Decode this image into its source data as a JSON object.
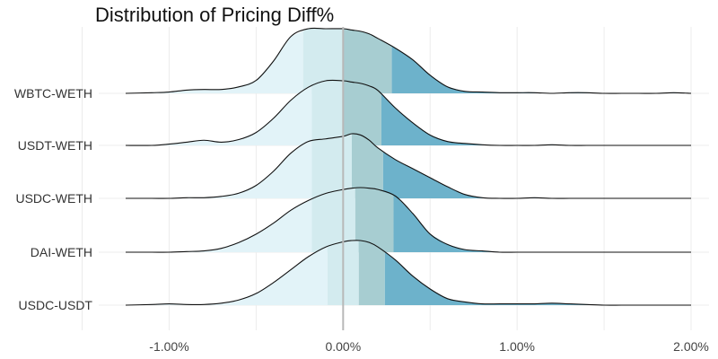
{
  "chart_data": {
    "type": "ridgeline",
    "title": "Distribution of Pricing Diff%",
    "xlabel": "",
    "ylabel": "",
    "xlim": [
      -1.25,
      2.0
    ],
    "x_ticks": [
      -1.0,
      0.0,
      1.0,
      2.0
    ],
    "x_tick_labels": [
      "-1.00%",
      "0.00%",
      "1.00%",
      "2.00%"
    ],
    "grid": true,
    "reference_line_x": 0.0,
    "quantile_colors": [
      "#e2f3f8",
      "#d3ebef",
      "#a7cdd1",
      "#6db2cb"
    ],
    "x": [
      -1.25,
      -1.1,
      -1.0,
      -0.9,
      -0.8,
      -0.7,
      -0.6,
      -0.5,
      -0.4,
      -0.3,
      -0.2,
      -0.1,
      0.0,
      0.05,
      0.1,
      0.15,
      0.2,
      0.3,
      0.4,
      0.5,
      0.6,
      0.7,
      0.8,
      0.9,
      1.0,
      1.1,
      1.2,
      1.3,
      1.4,
      1.5,
      1.6,
      1.7,
      1.8,
      1.9,
      2.0
    ],
    "series": [
      {
        "name": "WBTC-WETH",
        "quantiles": [
          -0.23,
          0.0,
          0.28
        ],
        "density": [
          0.0,
          0.01,
          0.02,
          0.05,
          0.06,
          0.06,
          0.1,
          0.2,
          0.5,
          0.88,
          1.0,
          1.0,
          1.0,
          0.98,
          0.96,
          0.92,
          0.85,
          0.7,
          0.52,
          0.28,
          0.1,
          0.03,
          0.02,
          0.01,
          0.01,
          0.01,
          0.0,
          0.01,
          0.01,
          0.0,
          0.0,
          0.0,
          0.0,
          0.01,
          0.0
        ]
      },
      {
        "name": "USDT-WETH",
        "quantiles": [
          -0.18,
          0.0,
          0.22
        ],
        "density": [
          0.0,
          0.0,
          0.02,
          0.05,
          0.08,
          0.05,
          0.09,
          0.2,
          0.42,
          0.7,
          0.9,
          1.0,
          1.0,
          0.98,
          0.96,
          0.92,
          0.85,
          0.58,
          0.35,
          0.16,
          0.06,
          0.03,
          0.01,
          0.0,
          0.0,
          0.0,
          0.01,
          0.0,
          0.0,
          0.0,
          0.0,
          0.0,
          0.0,
          0.0,
          0.0
        ]
      },
      {
        "name": "USDC-WETH",
        "quantiles": [
          -0.18,
          0.05,
          0.23
        ],
        "density": [
          0.0,
          0.0,
          0.0,
          0.01,
          0.01,
          0.03,
          0.08,
          0.2,
          0.42,
          0.7,
          0.88,
          0.92,
          0.96,
          1.0,
          0.98,
          0.9,
          0.78,
          0.6,
          0.46,
          0.32,
          0.18,
          0.06,
          0.01,
          0.0,
          0.0,
          0.01,
          0.0,
          0.0,
          0.0,
          0.0,
          0.0,
          0.0,
          0.0,
          0.0,
          0.0
        ]
      },
      {
        "name": "DAI-WETH",
        "quantiles": [
          -0.18,
          0.07,
          0.29
        ],
        "density": [
          0.0,
          0.0,
          0.0,
          0.01,
          0.02,
          0.06,
          0.15,
          0.28,
          0.45,
          0.65,
          0.8,
          0.91,
          0.97,
          0.99,
          1.0,
          0.99,
          0.97,
          0.87,
          0.6,
          0.28,
          0.12,
          0.04,
          0.02,
          0.0,
          0.0,
          0.0,
          0.0,
          0.0,
          0.0,
          0.0,
          0.0,
          0.0,
          0.0,
          0.0,
          0.0
        ]
      },
      {
        "name": "USDC-USDT",
        "quantiles": [
          -0.09,
          0.09,
          0.24
        ],
        "density": [
          0.0,
          0.01,
          0.02,
          0.01,
          0.01,
          0.03,
          0.08,
          0.18,
          0.35,
          0.55,
          0.75,
          0.9,
          0.98,
          1.0,
          1.0,
          0.97,
          0.9,
          0.7,
          0.45,
          0.25,
          0.1,
          0.05,
          0.02,
          0.02,
          0.02,
          0.02,
          0.03,
          0.02,
          0.01,
          0.0,
          0.0,
          0.0,
          0.0,
          0.0,
          0.0
        ]
      }
    ]
  }
}
